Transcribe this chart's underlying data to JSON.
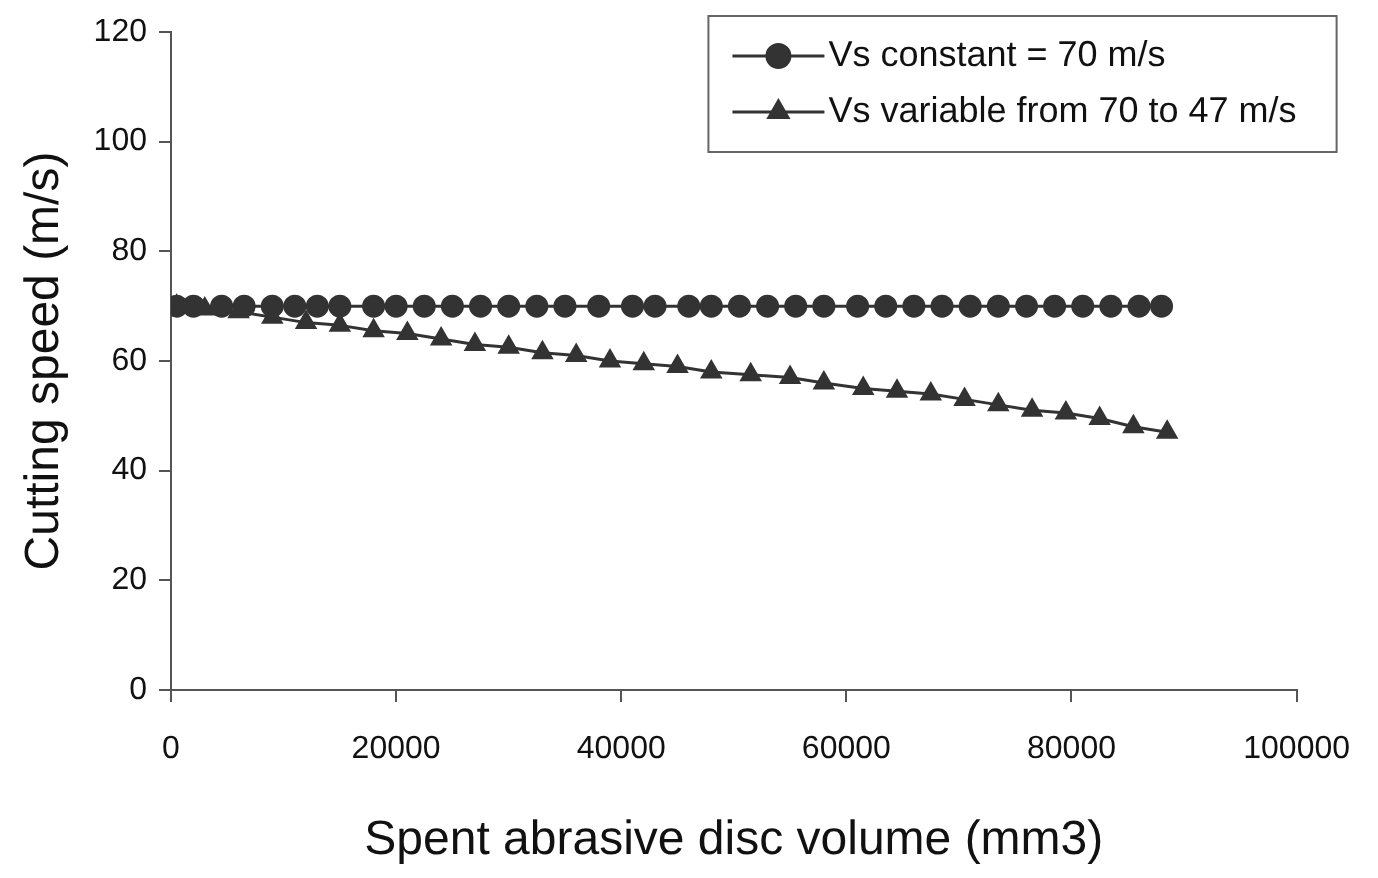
{
  "chart_data": {
    "type": "line",
    "xlabel": "Spent abrasive disc volume (mm3)",
    "ylabel": "Cutting speed (m/s)",
    "xlim": [
      0,
      100000
    ],
    "xticks": [
      0,
      20000,
      40000,
      60000,
      80000,
      100000
    ],
    "ylim": [
      0,
      120
    ],
    "yticks": [
      0,
      20,
      40,
      60,
      80,
      100,
      120
    ],
    "grid": false,
    "legend": "top right",
    "series": [
      {
        "name": "Vs constant = 70 m/s",
        "color": "#333333",
        "marker": "circle",
        "x": [
          500,
          2000,
          4500,
          6500,
          9000,
          11000,
          13000,
          15000,
          18000,
          20000,
          22500,
          25000,
          27500,
          30000,
          32500,
          35000,
          38000,
          41000,
          43000,
          46000,
          48000,
          50500,
          53000,
          55500,
          58000,
          61000,
          63500,
          66000,
          68500,
          71000,
          73500,
          76000,
          78500,
          81000,
          83500,
          86000,
          88000
        ],
        "values": [
          70,
          70,
          70,
          70,
          70,
          70,
          70,
          70,
          70,
          70,
          70,
          70,
          70,
          70,
          70,
          70,
          70,
          70,
          70,
          70,
          70,
          70,
          70,
          70,
          70,
          70,
          70,
          70,
          70,
          70,
          70,
          70,
          70,
          70,
          70,
          70,
          70
        ]
      },
      {
        "name": "Vs variable from 70 to 47 m/s",
        "color": "#333333",
        "marker": "triangle",
        "x": [
          500,
          3000,
          6000,
          9000,
          12000,
          15000,
          18000,
          21000,
          24000,
          27000,
          30000,
          33000,
          36000,
          39000,
          42000,
          45000,
          48000,
          51500,
          55000,
          58000,
          61500,
          64500,
          67500,
          70500,
          73500,
          76500,
          79500,
          82500,
          85500,
          88500
        ],
        "values": [
          70,
          69.5,
          69,
          68,
          67,
          66.5,
          65.5,
          65,
          64,
          63,
          62.5,
          61.5,
          61,
          60,
          59.5,
          59,
          58,
          57.5,
          57,
          56,
          55,
          54.5,
          54,
          53,
          52,
          51,
          50.5,
          49.5,
          48,
          47
        ]
      }
    ]
  }
}
